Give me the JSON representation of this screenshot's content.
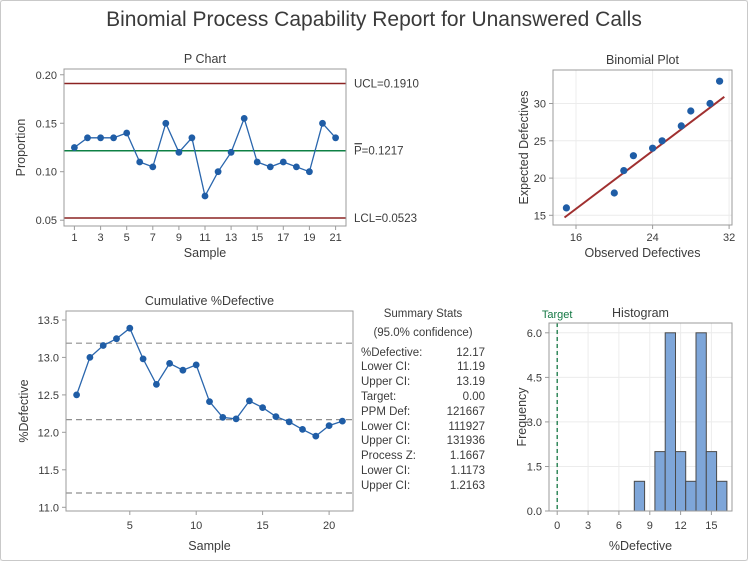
{
  "page": {
    "title": "Binomial Process Capability Report for Unanswered Calls"
  },
  "colors": {
    "point_blue": "#1f5da6",
    "line_blue": "#2a66ad",
    "control_red": "#8c2322",
    "fit_red": "#a03030",
    "center_green": "#0e8044",
    "target_green": "#157844",
    "bar_fill": "#7ea6d9",
    "bar_stroke": "#4a4a4a",
    "dashed_gray": "#8f8f8f",
    "grid_gray": "#ececec",
    "axis_gray": "#9b9b9b",
    "text_dark": "#3c3c3c"
  },
  "summary": {
    "title": "Summary Stats",
    "subtitle": "(95.0% confidence)",
    "rows": [
      {
        "label": "%Defective:",
        "value": "12.17"
      },
      {
        "label": "Lower CI:",
        "value": "11.19"
      },
      {
        "label": "Upper CI:",
        "value": "13.19"
      },
      {
        "label": "Target:",
        "value": "0.00"
      },
      {
        "label": "PPM Def:",
        "value": "121667"
      },
      {
        "label": "Lower CI:",
        "value": "111927"
      },
      {
        "label": "Upper CI:",
        "value": "131936"
      },
      {
        "label": "Process Z:",
        "value": "1.1667"
      },
      {
        "label": "Lower CI:",
        "value": "1.1173"
      },
      {
        "label": "Upper CI:",
        "value": "1.2163"
      }
    ]
  },
  "chart_data": [
    {
      "type": "line",
      "title": "P Chart",
      "xlabel": "Sample",
      "ylabel": "Proportion",
      "x": [
        1,
        2,
        3,
        4,
        5,
        6,
        7,
        8,
        9,
        10,
        11,
        12,
        13,
        14,
        15,
        16,
        17,
        18,
        19,
        20,
        21
      ],
      "values": [
        0.125,
        0.135,
        0.135,
        0.135,
        0.14,
        0.11,
        0.105,
        0.15,
        0.12,
        0.135,
        0.075,
        0.1,
        0.12,
        0.155,
        0.11,
        0.105,
        0.11,
        0.105,
        0.1,
        0.15,
        0.135
      ],
      "xlim": [
        0.2,
        21.8
      ],
      "ylim": [
        0.044,
        0.206
      ],
      "xticks": [
        1,
        3,
        5,
        7,
        9,
        11,
        13,
        15,
        17,
        19,
        21
      ],
      "xtick_labels": [
        "1",
        "3",
        "5",
        "7",
        "9",
        "11",
        "13",
        "15",
        "17",
        "19",
        "21"
      ],
      "yticks": [
        0.05,
        0.1,
        0.15,
        0.2
      ],
      "ytick_labels": [
        "0.05",
        "0.10",
        "0.15",
        "0.20"
      ],
      "grid": false,
      "legend": "none",
      "ref_lines": [
        {
          "name": "ucl-line",
          "label": "UCL=0.1910",
          "value": 0.191,
          "color": "control_red",
          "overbar": false
        },
        {
          "name": "center-line",
          "label": "P=0.1217",
          "value": 0.1217,
          "color": "center_green",
          "overbar": true
        },
        {
          "name": "lcl-line",
          "label": "LCL=0.0523",
          "value": 0.0523,
          "color": "control_red",
          "overbar": false
        }
      ]
    },
    {
      "type": "scatter",
      "title": "Binomial Plot",
      "xlabel": "Observed Defectives",
      "ylabel": "Expected Defectives",
      "points": [
        [
          15,
          16
        ],
        [
          20,
          18
        ],
        [
          21,
          21
        ],
        [
          22,
          23
        ],
        [
          24,
          24
        ],
        [
          25,
          25
        ],
        [
          27,
          27
        ],
        [
          28,
          29
        ],
        [
          30,
          30
        ],
        [
          31,
          33
        ]
      ],
      "fit_line": {
        "x1": 14.8,
        "y1": 14.7,
        "x2": 31.5,
        "y2": 30.9
      },
      "xlim": [
        13.6,
        32.3
      ],
      "ylim": [
        13.7,
        34.5
      ],
      "xticks": [
        16,
        24,
        32
      ],
      "xtick_labels": [
        "16",
        "24",
        "32"
      ],
      "yticks": [
        15,
        20,
        25,
        30
      ],
      "ytick_labels": [
        "15",
        "20",
        "25",
        "30"
      ],
      "grid": true,
      "legend": "none"
    },
    {
      "type": "line",
      "title": "Cumulative %Defective",
      "xlabel": "Sample",
      "ylabel": "%Defective",
      "x": [
        1,
        2,
        3,
        4,
        5,
        6,
        7,
        8,
        9,
        10,
        11,
        12,
        13,
        14,
        15,
        16,
        17,
        18,
        19,
        20,
        21
      ],
      "values": [
        12.5,
        13.0,
        13.16,
        13.25,
        13.39,
        12.98,
        12.64,
        12.92,
        12.83,
        12.9,
        12.41,
        12.2,
        12.18,
        12.42,
        12.33,
        12.21,
        12.14,
        12.04,
        11.95,
        12.09,
        12.15
      ],
      "dashed_lines": [
        13.19,
        12.17,
        11.19
      ],
      "xlim": [
        0.2,
        21.8
      ],
      "ylim": [
        10.95,
        13.62
      ],
      "xticks": [
        5,
        10,
        15,
        20
      ],
      "xtick_labels": [
        "5",
        "10",
        "15",
        "20"
      ],
      "yticks": [
        11.0,
        11.5,
        12.0,
        12.5,
        13.0,
        13.5
      ],
      "ytick_labels": [
        "11.0",
        "11.5",
        "12.0",
        "12.5",
        "13.0",
        "13.5"
      ],
      "grid": false,
      "legend": "none"
    },
    {
      "type": "bar",
      "title": "Histogram",
      "xlabel": "%Defective",
      "ylabel": "Frequency",
      "bin_centers": [
        8,
        10,
        11,
        12,
        13,
        14,
        15,
        16
      ],
      "frequencies": [
        1,
        2,
        6,
        2,
        1,
        6,
        2,
        1
      ],
      "bar_width": 1,
      "target": {
        "label": "Target",
        "value": 0
      },
      "xlim": [
        -0.8,
        17.0
      ],
      "ylim": [
        0,
        6.33
      ],
      "xticks": [
        0,
        3,
        6,
        9,
        12,
        15
      ],
      "xtick_labels": [
        "0",
        "3",
        "6",
        "9",
        "12",
        "15"
      ],
      "yticks": [
        0,
        1.5,
        3,
        4.5,
        6
      ],
      "ytick_labels": [
        "0.0",
        "1.5",
        "3.0",
        "4.5",
        "6.0"
      ],
      "grid": true,
      "legend": "none"
    }
  ]
}
